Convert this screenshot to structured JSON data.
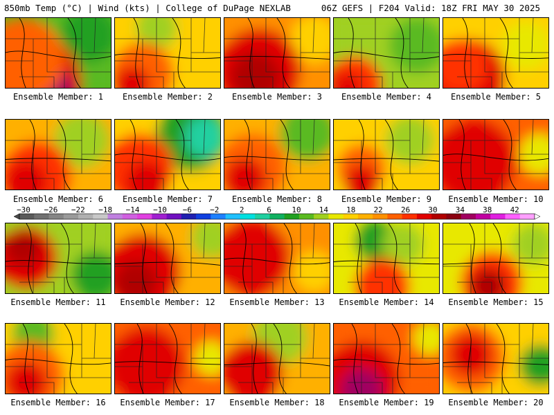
{
  "header": {
    "left": "850mb Temp (°C) | Wind (kts) | College of DuPage NEXLAB",
    "right": "06Z GEFS | F204 Valid: 18Z FRI MAY 30 2025"
  },
  "colorbar": {
    "labels": [
      "-30",
      "-26",
      "-22",
      "-18",
      "-14",
      "-10",
      "-6",
      "-2",
      "2",
      "6",
      "10",
      "14",
      "18",
      "22",
      "26",
      "30",
      "34",
      "38",
      "42"
    ],
    "colors": [
      "#5a5a5a",
      "#707070",
      "#858585",
      "#9a9a9a",
      "#b0b0b0",
      "#c8c8c8",
      "#c080e0",
      "#d060e0",
      "#e040e0",
      "#a020d0",
      "#7010c0",
      "#2020b0",
      "#1040e0",
      "#1e80ff",
      "#20c0ff",
      "#00e0e0",
      "#20d0a0",
      "#10b060",
      "#20a020",
      "#5aba20",
      "#a0d020",
      "#e8e800",
      "#ffd000",
      "#ffb000",
      "#ff9000",
      "#ff6000",
      "#ff3000",
      "#e00000",
      "#b00000",
      "#8a0010",
      "#a00060",
      "#c000a0",
      "#e020e0",
      "#ff60ff",
      "#ffa0ff"
    ]
  },
  "members": [
    {
      "label": "Ensemble Member: 1",
      "bg": "#5aba20",
      "hot": [
        [
          40,
          95,
          70,
          "#e00000"
        ],
        [
          55,
          105,
          40,
          "#a00060"
        ],
        [
          25,
          60,
          60,
          "#ff6000"
        ]
      ],
      "cool": [
        [
          120,
          25,
          40,
          "#20a020"
        ]
      ]
    },
    {
      "label": "Ensemble Member: 2",
      "bg": "#ffd000",
      "hot": [
        [
          40,
          80,
          45,
          "#ff6000"
        ],
        [
          25,
          95,
          25,
          "#e00000"
        ]
      ],
      "cool": [
        [
          60,
          15,
          30,
          "#a0d020"
        ]
      ]
    },
    {
      "label": "Ensemble Member: 3",
      "bg": "#ff9000",
      "hot": [
        [
          50,
          75,
          60,
          "#e00000"
        ],
        [
          45,
          85,
          35,
          "#b00000"
        ]
      ],
      "cool": [
        [
          130,
          30,
          35,
          "#ffd000"
        ]
      ]
    },
    {
      "label": "Ensemble Member: 4",
      "bg": "#a0d020",
      "hot": [
        [
          30,
          95,
          40,
          "#ff3000"
        ],
        [
          20,
          100,
          20,
          "#e00000"
        ]
      ],
      "cool": [
        [
          120,
          40,
          40,
          "#5aba20"
        ]
      ]
    },
    {
      "label": "Ensemble Member: 5",
      "bg": "#ffd000",
      "hot": [
        [
          35,
          85,
          55,
          "#e00000"
        ],
        [
          25,
          70,
          40,
          "#ff3000"
        ]
      ],
      "cool": [
        [
          120,
          40,
          35,
          "#e8e800"
        ]
      ]
    },
    {
      "label": "Ensemble Member: 6",
      "bg": "#ffb000",
      "hot": [
        [
          45,
          80,
          50,
          "#ff3000"
        ],
        [
          30,
          90,
          30,
          "#e00000"
        ]
      ],
      "cool": [
        [
          110,
          30,
          40,
          "#a0d020"
        ]
      ]
    },
    {
      "label": "Ensemble Member: 7",
      "bg": "#ffd000",
      "hot": [
        [
          35,
          70,
          50,
          "#ff3000"
        ],
        [
          45,
          90,
          30,
          "#e00000"
        ]
      ],
      "cool": [
        [
          110,
          25,
          50,
          "#20a020"
        ],
        [
          130,
          25,
          30,
          "#20d0a0"
        ]
      ]
    },
    {
      "label": "Ensemble Member: 8",
      "bg": "#ffb000",
      "hot": [
        [
          40,
          70,
          50,
          "#ff6000"
        ],
        [
          30,
          85,
          30,
          "#e00000"
        ]
      ],
      "cool": [
        [
          120,
          20,
          40,
          "#5aba20"
        ]
      ]
    },
    {
      "label": "Ensemble Member: 9",
      "bg": "#ffd000",
      "hot": [
        [
          40,
          70,
          35,
          "#ff6000"
        ],
        [
          40,
          90,
          25,
          "#e00000"
        ]
      ],
      "cool": [
        [
          110,
          30,
          35,
          "#a0d020"
        ]
      ]
    },
    {
      "label": "Ensemble Member: 10",
      "bg": "#ff6000",
      "hot": [
        [
          45,
          60,
          60,
          "#e00000"
        ]
      ],
      "cool": [
        [
          140,
          50,
          30,
          "#e8e800"
        ]
      ]
    },
    {
      "label": "Ensemble Member: 11",
      "bg": "#a0d020",
      "hot": [
        [
          30,
          50,
          45,
          "#e00000"
        ],
        [
          25,
          35,
          25,
          "#b00000"
        ]
      ],
      "cool": [
        [
          130,
          75,
          35,
          "#20a020"
        ]
      ]
    },
    {
      "label": "Ensemble Member: 12",
      "bg": "#ffb000",
      "hot": [
        [
          40,
          70,
          55,
          "#e00000"
        ],
        [
          30,
          85,
          30,
          "#b00000"
        ]
      ],
      "cool": [
        [
          140,
          20,
          30,
          "#a0d020"
        ]
      ]
    },
    {
      "label": "Ensemble Member: 13",
      "bg": "#ff9000",
      "hot": [
        [
          40,
          50,
          55,
          "#e00000"
        ]
      ],
      "cool": [
        [
          130,
          70,
          30,
          "#ffd000"
        ]
      ]
    },
    {
      "label": "Ensemble Member: 14",
      "bg": "#e8e800",
      "hot": [
        [
          70,
          90,
          40,
          "#ff3000"
        ]
      ],
      "cool": [
        [
          60,
          25,
          30,
          "#20a020"
        ],
        [
          100,
          30,
          30,
          "#a0d020"
        ]
      ]
    },
    {
      "label": "Ensemble Member: 15",
      "bg": "#e8e800",
      "hot": [
        [
          70,
          85,
          45,
          "#ff3000"
        ],
        [
          65,
          90,
          25,
          "#b00000"
        ]
      ],
      "cool": [
        [
          130,
          30,
          30,
          "#a0d020"
        ]
      ]
    },
    {
      "label": "Ensemble Member: 16",
      "bg": "#ffd000",
      "hot": [
        [
          35,
          75,
          50,
          "#ff6000"
        ],
        [
          30,
          85,
          30,
          "#e00000"
        ]
      ],
      "cool": [
        [
          40,
          15,
          30,
          "#5aba20"
        ]
      ]
    },
    {
      "label": "Ensemble Member: 17",
      "bg": "#ff6000",
      "hot": [
        [
          45,
          60,
          55,
          "#e00000"
        ]
      ],
      "cool": [
        [
          140,
          50,
          25,
          "#e8e800"
        ]
      ]
    },
    {
      "label": "Ensemble Member: 18",
      "bg": "#ffb000",
      "hot": [
        [
          40,
          70,
          45,
          "#e00000"
        ]
      ],
      "cool": [
        [
          80,
          20,
          40,
          "#a0d020"
        ]
      ]
    },
    {
      "label": "Ensemble Member: 19",
      "bg": "#ff6000",
      "hot": [
        [
          40,
          80,
          55,
          "#e00000"
        ],
        [
          40,
          95,
          30,
          "#a00060"
        ]
      ],
      "cool": [
        [
          140,
          20,
          25,
          "#e8e800"
        ]
      ]
    },
    {
      "label": "Ensemble Member: 20",
      "bg": "#ffd000",
      "hot": [
        [
          40,
          50,
          50,
          "#ff6000"
        ],
        [
          40,
          45,
          30,
          "#e00000"
        ]
      ],
      "cool": [
        [
          140,
          60,
          30,
          "#20a020"
        ]
      ]
    }
  ]
}
